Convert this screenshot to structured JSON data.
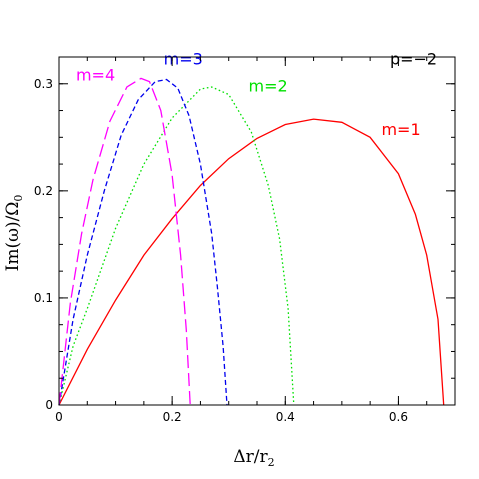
{
  "chart_data": {
    "type": "line",
    "xlabel": "Δr/r",
    "xlabel_sub": "2",
    "ylabel": "Im(ω)/Ω",
    "ylabel_sub": "0",
    "xlim": [
      0,
      0.7
    ],
    "ylim": [
      0,
      0.325
    ],
    "x_ticks": [
      0,
      0.2,
      0.4,
      0.6
    ],
    "x_tick_labels": [
      "0",
      "0.2",
      "0.4",
      "0.6"
    ],
    "x_minor_step": 0.05,
    "y_ticks": [
      0,
      0.1,
      0.2,
      0.3
    ],
    "y_tick_labels": [
      "0",
      "0.1",
      "0.2",
      "0.3"
    ],
    "y_minor_step": 0.025,
    "grid": false,
    "annotation": "p=−2",
    "series": [
      {
        "name": "m=1",
        "color": "#ff0000",
        "dash": "solid",
        "x": [
          0,
          0.05,
          0.1,
          0.15,
          0.2,
          0.25,
          0.3,
          0.35,
          0.4,
          0.45,
          0.5,
          0.55,
          0.6,
          0.63,
          0.65,
          0.67,
          0.68
        ],
        "y": [
          0,
          0.052,
          0.098,
          0.14,
          0.174,
          0.205,
          0.23,
          0.249,
          0.262,
          0.267,
          0.264,
          0.25,
          0.216,
          0.178,
          0.14,
          0.08,
          0
        ]
      },
      {
        "name": "m=2",
        "color": "#00e000",
        "dash": "dotted",
        "x": [
          0,
          0.025,
          0.05,
          0.1,
          0.15,
          0.2,
          0.25,
          0.27,
          0.3,
          0.34,
          0.37,
          0.39,
          0.405,
          0.415
        ],
        "y": [
          0,
          0.055,
          0.09,
          0.165,
          0.225,
          0.268,
          0.295,
          0.297,
          0.29,
          0.255,
          0.205,
          0.155,
          0.09,
          0
        ]
      },
      {
        "name": "m=3",
        "color": "#0000ee",
        "dash": "dashed",
        "x": [
          0,
          0.025,
          0.05,
          0.08,
          0.11,
          0.14,
          0.17,
          0.19,
          0.21,
          0.23,
          0.25,
          0.27,
          0.28,
          0.29,
          0.297
        ],
        "y": [
          0,
          0.08,
          0.14,
          0.2,
          0.252,
          0.285,
          0.302,
          0.304,
          0.296,
          0.27,
          0.225,
          0.16,
          0.11,
          0.055,
          0
        ]
      },
      {
        "name": "m=4",
        "color": "#ff00ff",
        "dash": "longdash",
        "x": [
          0,
          0.02,
          0.04,
          0.06,
          0.09,
          0.12,
          0.145,
          0.16,
          0.18,
          0.2,
          0.215,
          0.225,
          0.232
        ],
        "y": [
          0,
          0.095,
          0.16,
          0.21,
          0.265,
          0.297,
          0.305,
          0.302,
          0.275,
          0.215,
          0.14,
          0.07,
          0
        ]
      }
    ],
    "series_label_positions": [
      {
        "name": "m=1",
        "x": 0.57,
        "y": 0.252
      },
      {
        "name": "m=2",
        "x": 0.335,
        "y": 0.293
      },
      {
        "name": "m=3",
        "x": 0.185,
        "y": 0.318
      },
      {
        "name": "m=4",
        "x": 0.03,
        "y": 0.303
      }
    ],
    "annotation_position": {
      "x": 0.585,
      "y": 0.318
    }
  }
}
